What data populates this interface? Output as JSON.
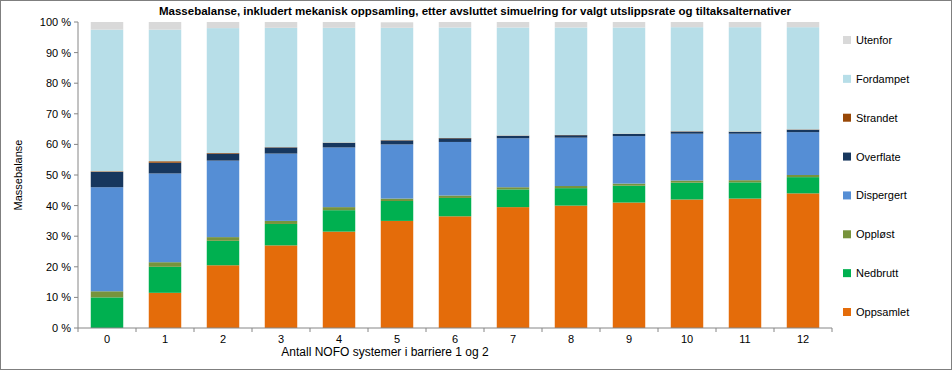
{
  "chart_data": {
    "type": "bar",
    "stacked": true,
    "title": "Massebalanse, inkludert mekanisk oppsamling, etter avsluttet simuelring for valgt utslippsrate og tiltaksalternativer",
    "x_label": "Antall NOFO systemer i barriere 1 og 2",
    "y_label": "Massebalanse",
    "categories": [
      "0",
      "1",
      "2",
      "3",
      "4",
      "5",
      "6",
      "7",
      "8",
      "9",
      "10",
      "11",
      "12"
    ],
    "ylim": [
      0,
      100
    ],
    "yticks": [
      {
        "value": 0,
        "label": "0 %"
      },
      {
        "value": 10,
        "label": "10 %"
      },
      {
        "value": 20,
        "label": "20 %"
      },
      {
        "value": 30,
        "label": "30 %"
      },
      {
        "value": 40,
        "label": "40 %"
      },
      {
        "value": 50,
        "label": "50 %"
      },
      {
        "value": 60,
        "label": "60 %"
      },
      {
        "value": 70,
        "label": "70 %"
      },
      {
        "value": 80,
        "label": "80 %"
      },
      {
        "value": 90,
        "label": "90 %"
      },
      {
        "value": 100,
        "label": "100 %"
      }
    ],
    "grid": false,
    "legend": "right",
    "series": [
      {
        "name": "Oppsamlet",
        "color": "#e46c0a",
        "values": [
          0,
          11.5,
          20.5,
          27,
          31.5,
          35,
          36.5,
          39.5,
          40,
          41,
          42,
          42.3,
          44
        ]
      },
      {
        "name": "Nedbrutt",
        "color": "#00b050",
        "values": [
          10,
          8.5,
          8,
          7,
          7,
          6.5,
          6,
          5.8,
          5.7,
          5.5,
          5.5,
          5.3,
          5.3
        ]
      },
      {
        "name": "Oppløst",
        "color": "#77933c",
        "values": [
          2,
          1.5,
          1.2,
          1,
          1,
          0.8,
          0.8,
          0.7,
          0.7,
          0.7,
          0.7,
          0.7,
          0.7
        ]
      },
      {
        "name": "Dispergert",
        "color": "#558ed5",
        "values": [
          34,
          29,
          25,
          22,
          19.5,
          17.7,
          17.5,
          16,
          15.8,
          15.5,
          15.3,
          15.2,
          14
        ]
      },
      {
        "name": "Overflate",
        "color": "#17375e",
        "values": [
          5,
          3.5,
          2.3,
          2,
          1.5,
          1.3,
          1.2,
          0.8,
          0.8,
          0.7,
          0.7,
          0.6,
          0.8
        ]
      },
      {
        "name": "Strandet",
        "color": "#984807",
        "values": [
          0.2,
          0.5,
          0.2,
          0.1,
          0.1,
          0.1,
          0.1,
          0.1,
          0.1,
          0.1,
          0.1,
          0.1,
          0.1
        ]
      },
      {
        "name": "Fordampet",
        "color": "#b7dee8",
        "values": [
          46.3,
          43,
          40.8,
          39,
          37.5,
          36.7,
          36.1,
          35.3,
          35.1,
          34.7,
          34,
          34.1,
          33.4
        ]
      },
      {
        "name": "Utenfor",
        "color": "#d9d9d9",
        "values": [
          2.5,
          2.5,
          2,
          1.9,
          1.9,
          1.8,
          1.8,
          1.8,
          1.8,
          1.8,
          1.7,
          1.7,
          1.7
        ]
      }
    ]
  }
}
